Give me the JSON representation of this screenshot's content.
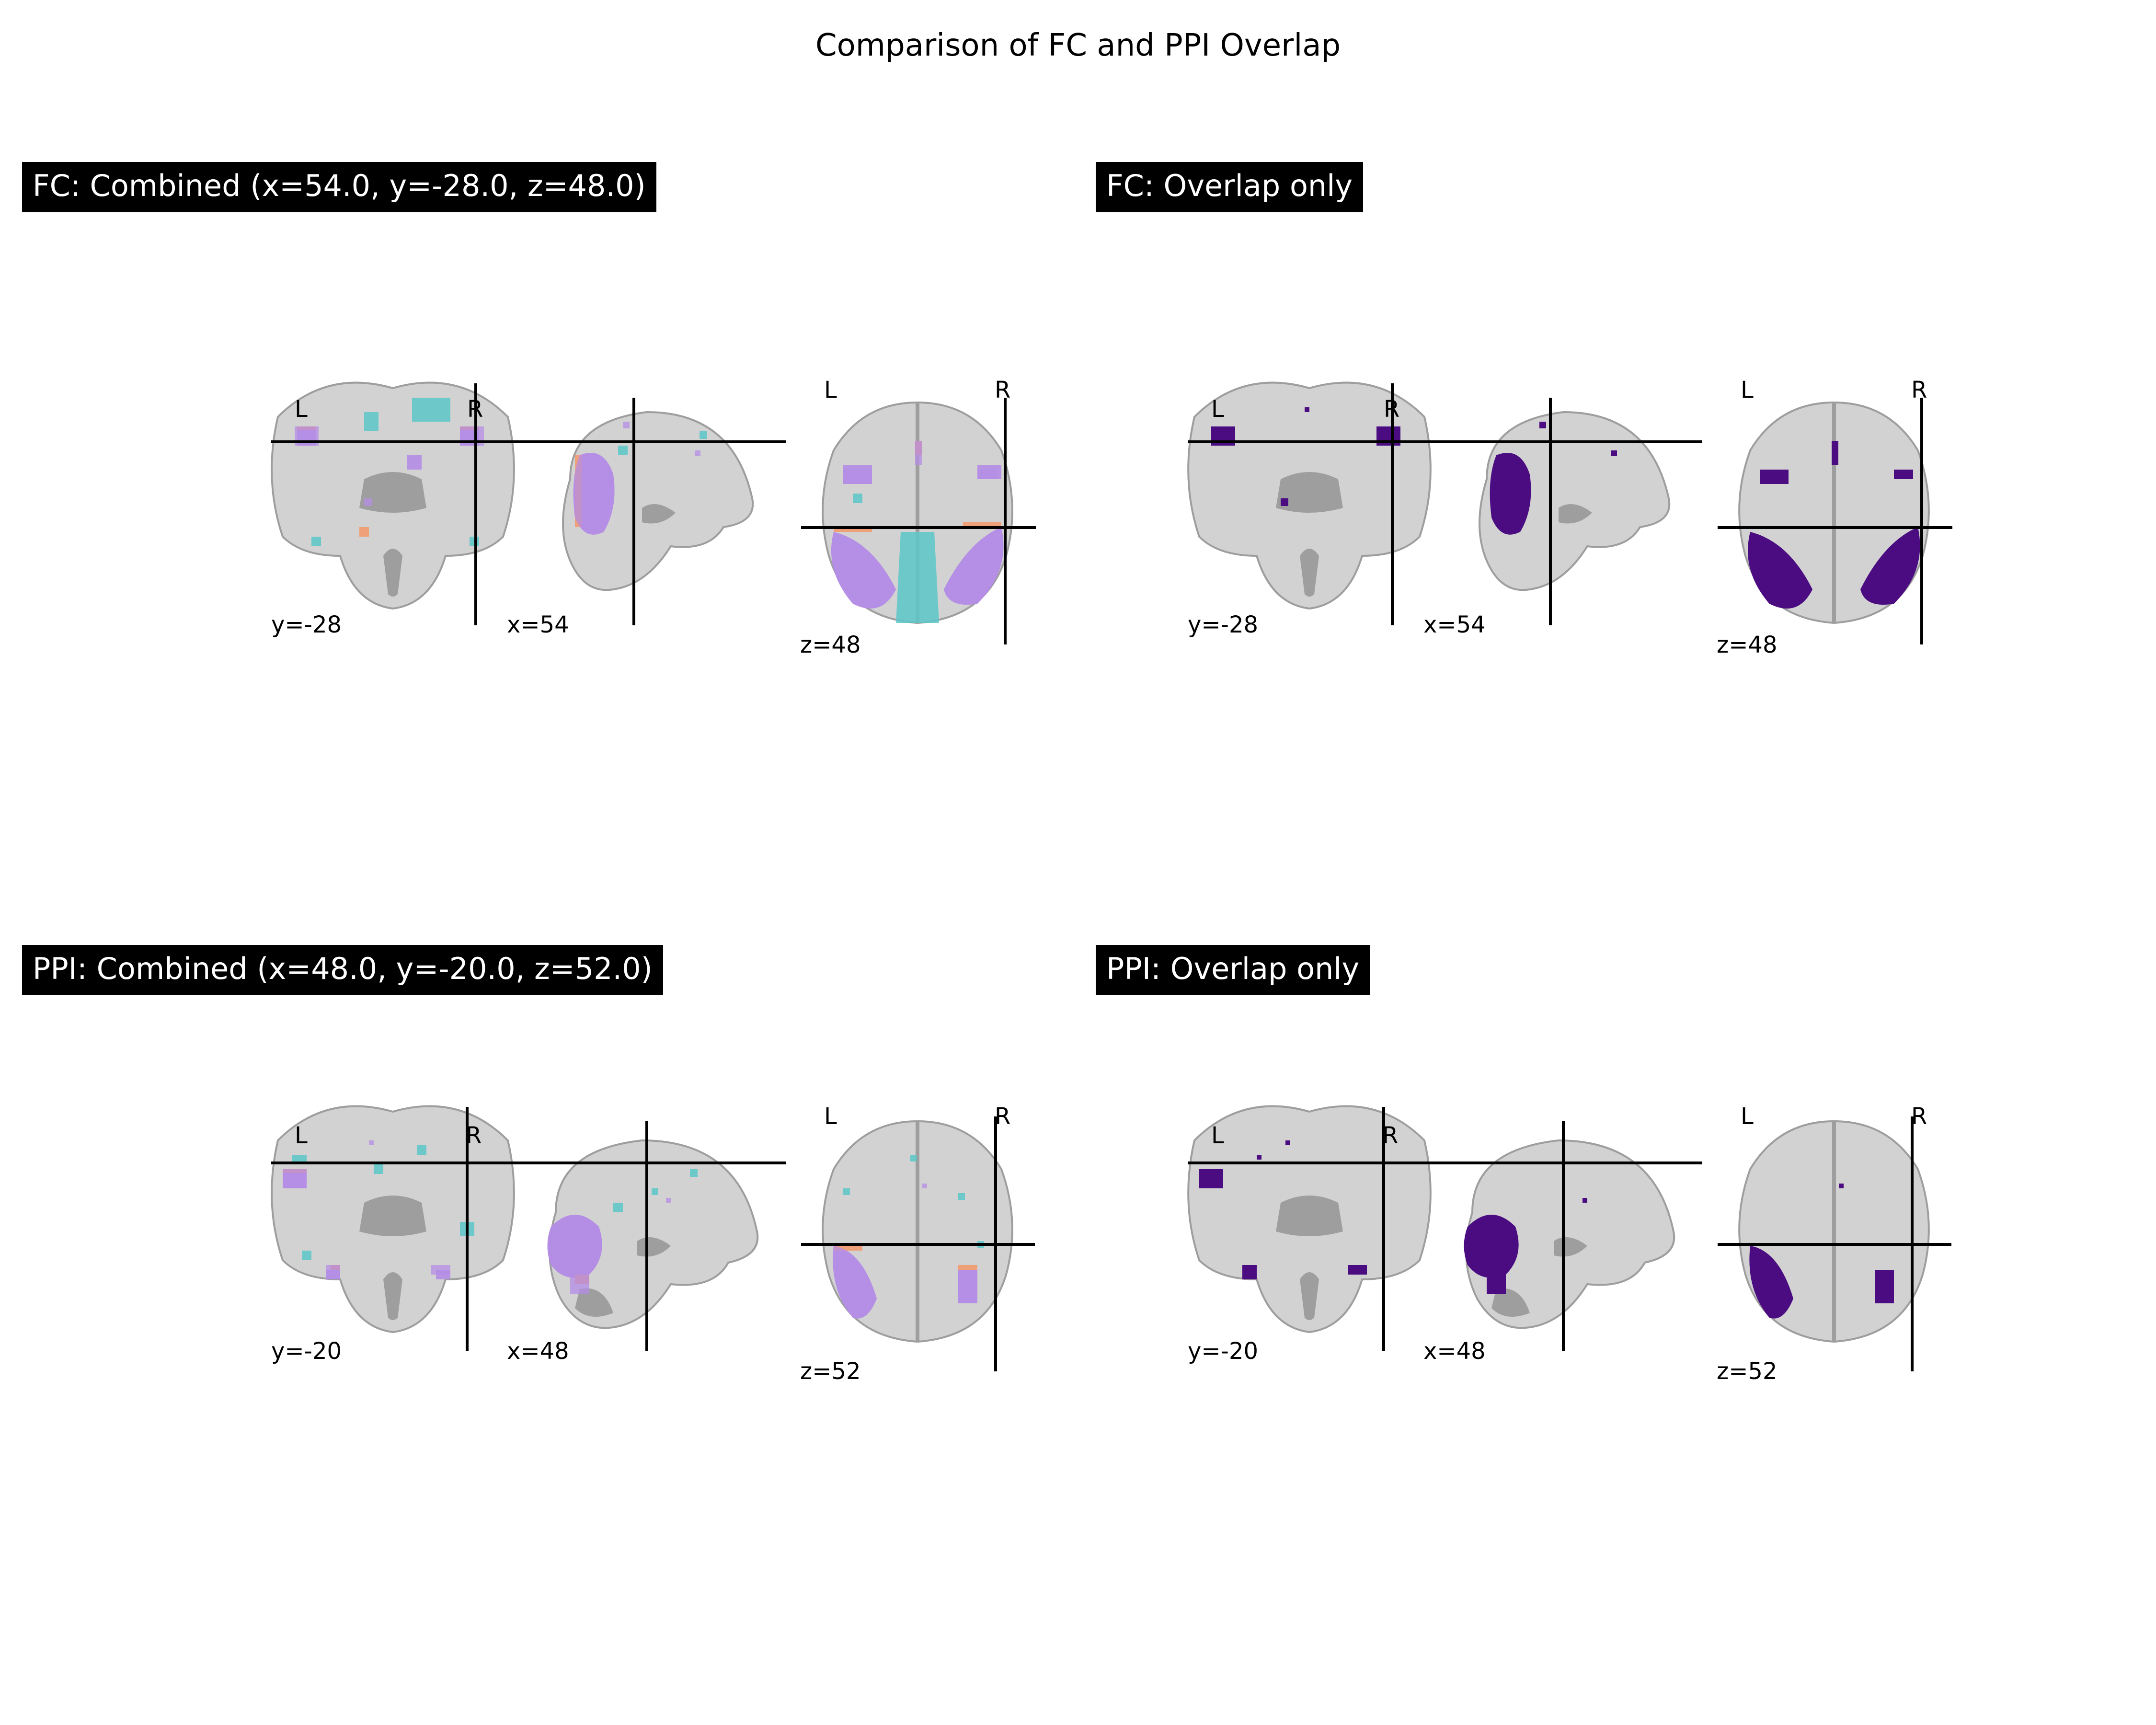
{
  "figure": {
    "title": "Comparison of FC and PPI Overlap"
  },
  "colors": {
    "brain": "#d2d2d2",
    "brain_shade": "#9e9e9e",
    "network_a": "#5cc8c8",
    "network_b": "#b48ce6",
    "edge": "#f0a078",
    "overlap": "#4b0c82",
    "title_bg": "#000000",
    "title_fg": "#ffffff"
  },
  "panels": [
    {
      "id": "fc-combined",
      "title": "FC: Combined (x=54.0, y=-28.0, z=48.0)",
      "mode": "combined",
      "coronal_label": "y=-28",
      "sagittal_label": "x=54",
      "axial_label": "z=48",
      "left_marker": "L",
      "right_marker": "R"
    },
    {
      "id": "fc-overlap",
      "title": "FC: Overlap only",
      "mode": "overlap",
      "coronal_label": "y=-28",
      "sagittal_label": "x=54",
      "axial_label": "z=48",
      "left_marker": "L",
      "right_marker": "R"
    },
    {
      "id": "ppi-combined",
      "title": "PPI: Combined (x=48.0, y=-20.0, z=52.0)",
      "mode": "combined",
      "coronal_label": "y=-20",
      "sagittal_label": "x=48",
      "axial_label": "z=52",
      "left_marker": "L",
      "right_marker": "R"
    },
    {
      "id": "ppi-overlap",
      "title": "PPI: Overlap only",
      "mode": "overlap",
      "coronal_label": "y=-20",
      "sagittal_label": "x=48",
      "axial_label": "z=52",
      "left_marker": "L",
      "right_marker": "R"
    }
  ]
}
